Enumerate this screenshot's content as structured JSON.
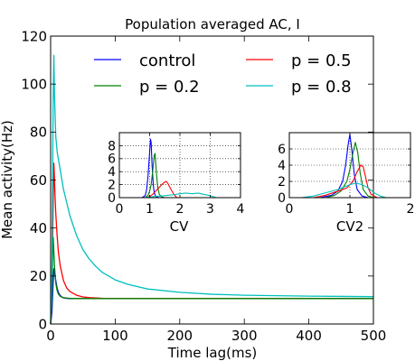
{
  "chart_data": [
    {
      "type": "line",
      "title": "Population averaged AC, I",
      "xlabel": "Time lag(ms)",
      "ylabel": "Mean activity(Hz)",
      "xlim": [
        0,
        500
      ],
      "ylim": [
        0,
        120
      ],
      "x_ticks": [
        0,
        100,
        200,
        300,
        400,
        500
      ],
      "y_ticks": [
        0,
        20,
        40,
        60,
        80,
        100,
        120
      ],
      "grid": false,
      "legend_position": "top",
      "series": [
        {
          "name": "control",
          "color": "#0000ff",
          "x": [
            0,
            2,
            4,
            5,
            6,
            7,
            8,
            10,
            12,
            14,
            16,
            18,
            20,
            25,
            30,
            40,
            60,
            100,
            200,
            300,
            400,
            500
          ],
          "y": [
            0,
            5,
            18,
            23,
            22,
            20,
            18,
            15,
            13.2,
            12.2,
            11.5,
            11.1,
            10.9,
            10.7,
            10.6,
            10.6,
            10.6,
            10.6,
            10.6,
            10.6,
            10.6,
            10.6
          ]
        },
        {
          "name": "p = 0.5",
          "color": "#ff0000",
          "x": [
            0,
            2,
            4,
            5,
            6,
            7,
            8,
            10,
            12,
            15,
            20,
            25,
            30,
            40,
            50,
            60,
            80,
            100,
            200,
            300,
            400,
            500
          ],
          "y": [
            0,
            15,
            52,
            67,
            60,
            52,
            46,
            37,
            30,
            24,
            18,
            15,
            13.5,
            12,
            11.3,
            11,
            10.7,
            10.6,
            10.6,
            10.6,
            10.6,
            10.6
          ]
        },
        {
          "name": "p = 0.2",
          "color": "#008000",
          "x": [
            0,
            2,
            3,
            4,
            5,
            6,
            8,
            10,
            12,
            15,
            20,
            25,
            30,
            40,
            100,
            200,
            300,
            400,
            500
          ],
          "y": [
            0,
            10,
            28,
            36,
            30,
            24,
            17,
            14,
            12.5,
            11.5,
            11,
            10.8,
            10.7,
            10.6,
            10.6,
            10.6,
            10.6,
            10.6,
            10.6
          ]
        },
        {
          "name": "p = 0.8",
          "color": "#00bfbf",
          "x": [
            0,
            2,
            4,
            5,
            6,
            8,
            10,
            15,
            20,
            30,
            40,
            50,
            60,
            70,
            80,
            100,
            120,
            150,
            200,
            250,
            300,
            400,
            500
          ],
          "y": [
            0,
            25,
            95,
            112,
            95,
            78,
            72,
            64,
            56,
            45,
            37,
            31,
            27,
            24,
            21.5,
            18.4,
            16.5,
            14.6,
            13.2,
            12.4,
            12,
            11.6,
            11.4
          ]
        }
      ]
    },
    {
      "type": "line",
      "title": "",
      "xlabel": "CV",
      "ylabel": "",
      "xlim": [
        0,
        4
      ],
      "ylim": [
        0,
        10
      ],
      "x_ticks": [
        0,
        1,
        2,
        3,
        4
      ],
      "y_ticks": [
        0,
        2,
        4,
        6,
        8
      ],
      "grid": true,
      "series": [
        {
          "color": "#0000ff",
          "x": [
            0.75,
            0.85,
            0.9,
            0.95,
            1.0,
            1.03,
            1.05,
            1.08,
            1.12,
            1.15,
            1.2,
            1.3
          ],
          "y": [
            0,
            0.3,
            1.2,
            3.5,
            7,
            9,
            8.5,
            5,
            2,
            0.8,
            0.2,
            0
          ]
        },
        {
          "color": "#008000",
          "x": [
            0.85,
            0.95,
            1.0,
            1.05,
            1.1,
            1.15,
            1.18,
            1.22,
            1.27,
            1.32,
            1.4,
            1.5
          ],
          "y": [
            0,
            0.4,
            1,
            2,
            4,
            6.5,
            6.8,
            4,
            1.5,
            0.5,
            0.1,
            0
          ]
        },
        {
          "color": "#ff0000",
          "x": [
            0.9,
            1.0,
            1.1,
            1.2,
            1.3,
            1.4,
            1.5,
            1.55,
            1.6,
            1.7,
            1.8,
            1.9
          ],
          "y": [
            0,
            0.2,
            0.5,
            1,
            1.5,
            2,
            2.4,
            2.5,
            2.2,
            1.3,
            0.5,
            0
          ]
        },
        {
          "color": "#00bfbf",
          "x": [
            0.8,
            1.0,
            1.2,
            1.5,
            1.8,
            2.0,
            2.2,
            2.4,
            2.6,
            2.8,
            3.0,
            3.2
          ],
          "y": [
            0,
            0.1,
            0.2,
            0.3,
            0.45,
            0.6,
            0.7,
            0.6,
            0.7,
            0.5,
            0.3,
            0
          ]
        }
      ]
    },
    {
      "type": "line",
      "title": "",
      "xlabel": "CV2",
      "ylabel": "",
      "xlim": [
        0,
        2
      ],
      "ylim": [
        0,
        8
      ],
      "x_ticks": [
        0,
        1,
        2
      ],
      "y_ticks": [
        0,
        2,
        4,
        6
      ],
      "grid": true,
      "series": [
        {
          "color": "#0000ff",
          "x": [
            0.5,
            0.7,
            0.8,
            0.88,
            0.93,
            0.97,
            1.0,
            1.03,
            1.07,
            1.12,
            1.2,
            1.3
          ],
          "y": [
            0,
            0.3,
            0.8,
            2,
            4,
            6.5,
            7.8,
            6,
            3,
            1,
            0.2,
            0
          ]
        },
        {
          "color": "#008000",
          "x": [
            0.6,
            0.75,
            0.85,
            0.95,
            1.0,
            1.05,
            1.09,
            1.13,
            1.17,
            1.22,
            1.3,
            1.4
          ],
          "y": [
            0,
            0.3,
            0.8,
            2,
            3.5,
            5.5,
            6.8,
            5.5,
            3,
            1,
            0.2,
            0
          ]
        },
        {
          "color": "#ff0000",
          "x": [
            0.4,
            0.6,
            0.8,
            0.95,
            1.05,
            1.12,
            1.18,
            1.22,
            1.26,
            1.3,
            1.35,
            1.45
          ],
          "y": [
            0,
            0.3,
            0.8,
            1.2,
            2,
            3.2,
            4,
            3.8,
            2.5,
            1.2,
            0.4,
            0
          ]
        },
        {
          "color": "#00bfbf",
          "x": [
            0.2,
            0.4,
            0.6,
            0.8,
            0.9,
            1.0,
            1.1,
            1.2,
            1.3,
            1.4,
            1.5,
            1.6
          ],
          "y": [
            0,
            0.2,
            0.6,
            1,
            1.3,
            1.6,
            1.8,
            1.6,
            1.2,
            0.6,
            0.2,
            0
          ]
        }
      ]
    }
  ]
}
